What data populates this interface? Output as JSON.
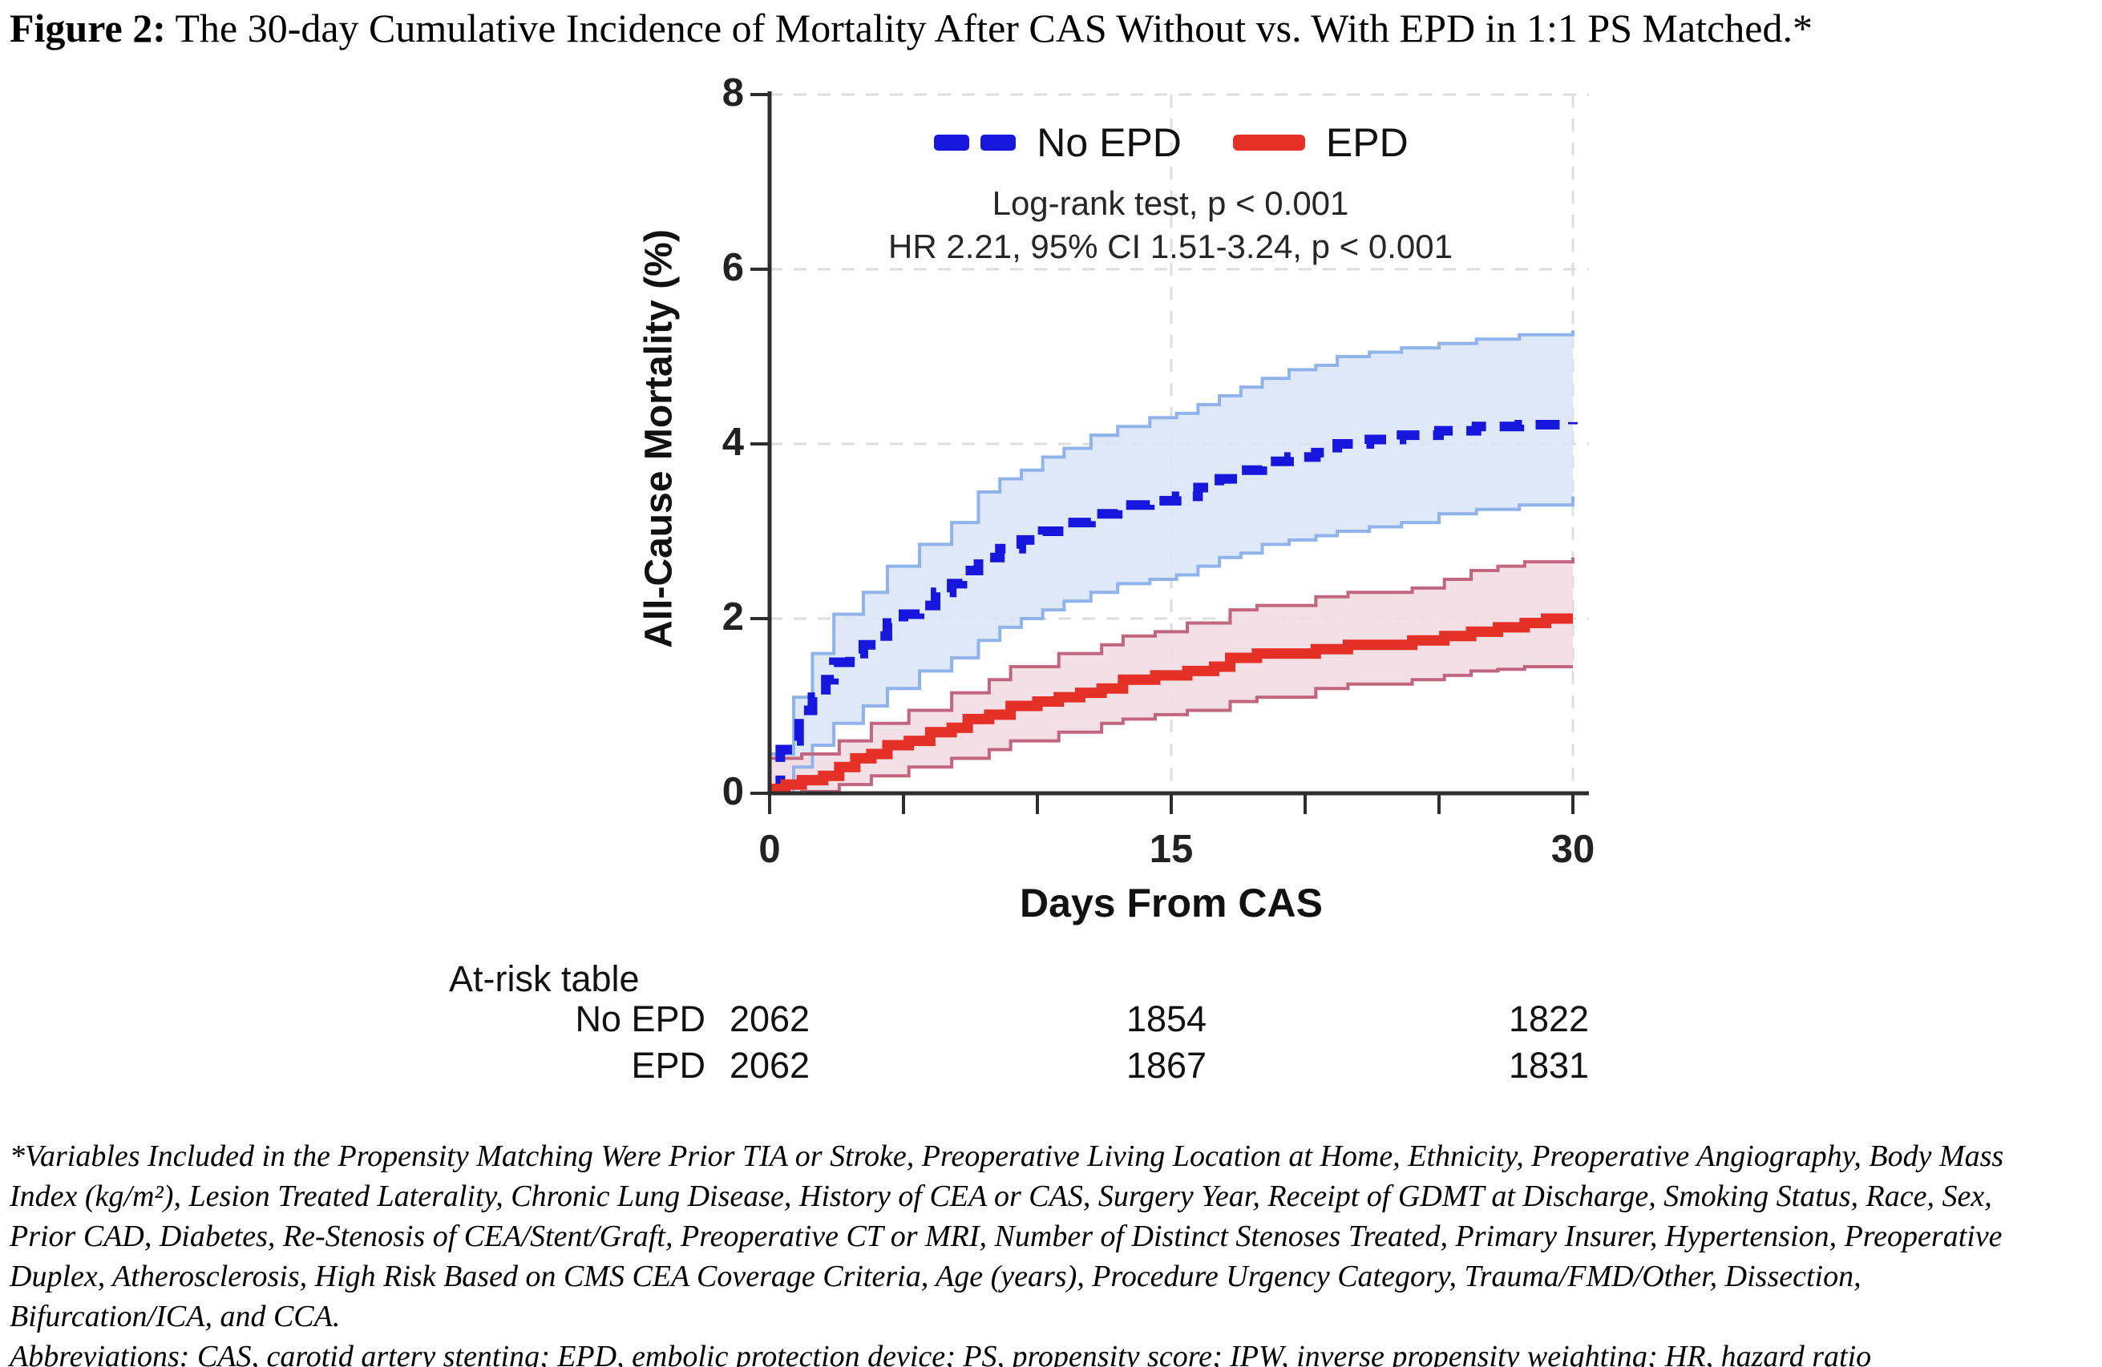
{
  "figure": {
    "title_prefix": "Figure 2:",
    "title_text": " The 30-day Cumulative Incidence of Mortality After CAS Without vs. With EPD in 1:1 PS Matched.*"
  },
  "chart_data": {
    "type": "line",
    "subtype": "kaplan-meier-step-with-confidence-bands",
    "title": "",
    "xlabel": "Days From CAS",
    "ylabel": "All-Cause Mortality (%)",
    "xlim": [
      0,
      30
    ],
    "ylim": [
      0,
      8
    ],
    "xticks": {
      "major": [
        0,
        15,
        30
      ],
      "minor": [
        5,
        10,
        20,
        25
      ]
    },
    "yticks": [
      0,
      2,
      4,
      6,
      8
    ],
    "grid_x": [
      15,
      30
    ],
    "grid_y": [
      2,
      4,
      6,
      8
    ],
    "grid_style": "dashed-light-gray",
    "legend_position": "top-center-inside",
    "annotations": {
      "logrank": "Log-rank test, p < 0.001",
      "hazard_ratio": "HR 2.21, 95% CI 1.51-3.24, p < 0.001"
    },
    "colors": {
      "no_epd_line": "#1616dc",
      "no_epd_band_fill": "#dbe5f6",
      "no_epd_band_edge": "#8fb3ea",
      "epd_line": "#e43027",
      "epd_band_fill": "#f2dce3",
      "epd_band_edge": "#c26580",
      "axis": "#2d2d2d",
      "grid": "#dedede"
    },
    "series": [
      {
        "name": "No EPD",
        "style": "dashed",
        "color": "#1616dc",
        "band_fill": "#dbe5f6",
        "band_edge": "#8fb3ea",
        "points": [
          [
            0,
            0.05
          ],
          [
            0.4,
            0.5
          ],
          [
            0.9,
            0.6
          ],
          [
            1.1,
            0.95
          ],
          [
            1.6,
            1.1
          ],
          [
            2.1,
            1.3
          ],
          [
            2.4,
            1.5
          ],
          [
            3.0,
            1.6
          ],
          [
            3.5,
            1.7
          ],
          [
            4.0,
            1.8
          ],
          [
            4.4,
            1.95
          ],
          [
            5.0,
            2.05
          ],
          [
            5.6,
            2.15
          ],
          [
            6.2,
            2.3
          ],
          [
            6.8,
            2.4
          ],
          [
            7.2,
            2.55
          ],
          [
            7.8,
            2.7
          ],
          [
            8.6,
            2.8
          ],
          [
            9.4,
            2.9
          ],
          [
            10.2,
            3.0
          ],
          [
            11.0,
            3.1
          ],
          [
            12.0,
            3.2
          ],
          [
            13.0,
            3.3
          ],
          [
            14.2,
            3.35
          ],
          [
            15.2,
            3.4
          ],
          [
            16.0,
            3.5
          ],
          [
            16.8,
            3.6
          ],
          [
            17.6,
            3.7
          ],
          [
            18.4,
            3.8
          ],
          [
            19.4,
            3.85
          ],
          [
            20.4,
            3.9
          ],
          [
            21.2,
            4.0
          ],
          [
            22.4,
            4.05
          ],
          [
            23.6,
            4.1
          ],
          [
            25.0,
            4.15
          ],
          [
            26.4,
            4.2
          ],
          [
            28.0,
            4.22
          ],
          [
            30,
            4.25
          ]
        ],
        "band": [
          [
            0,
            0.0,
            0.45
          ],
          [
            0.9,
            0.3,
            1.1
          ],
          [
            1.6,
            0.55,
            1.6
          ],
          [
            2.4,
            0.8,
            2.05
          ],
          [
            3.5,
            1.0,
            2.3
          ],
          [
            4.4,
            1.2,
            2.6
          ],
          [
            5.6,
            1.4,
            2.85
          ],
          [
            6.8,
            1.55,
            3.1
          ],
          [
            7.8,
            1.75,
            3.45
          ],
          [
            8.6,
            1.9,
            3.6
          ],
          [
            9.4,
            2.0,
            3.7
          ],
          [
            10.2,
            2.1,
            3.85
          ],
          [
            11.0,
            2.2,
            3.95
          ],
          [
            12.0,
            2.3,
            4.1
          ],
          [
            13.0,
            2.4,
            4.2
          ],
          [
            14.2,
            2.45,
            4.3
          ],
          [
            15.2,
            2.5,
            4.35
          ],
          [
            16.0,
            2.6,
            4.45
          ],
          [
            16.8,
            2.7,
            4.55
          ],
          [
            17.6,
            2.75,
            4.65
          ],
          [
            18.4,
            2.85,
            4.75
          ],
          [
            19.4,
            2.9,
            4.85
          ],
          [
            20.4,
            2.95,
            4.9
          ],
          [
            21.2,
            3.0,
            5.0
          ],
          [
            22.4,
            3.05,
            5.05
          ],
          [
            23.6,
            3.1,
            5.1
          ],
          [
            25.0,
            3.2,
            5.15
          ],
          [
            26.4,
            3.25,
            5.2
          ],
          [
            28.0,
            3.3,
            5.25
          ],
          [
            30,
            3.4,
            5.3
          ]
        ]
      },
      {
        "name": "EPD",
        "style": "solid",
        "color": "#e43027",
        "band_fill": "#f2dce3",
        "band_edge": "#c26580",
        "points": [
          [
            0,
            0.05
          ],
          [
            0.6,
            0.1
          ],
          [
            1.2,
            0.15
          ],
          [
            2.0,
            0.2
          ],
          [
            2.6,
            0.3
          ],
          [
            3.2,
            0.4
          ],
          [
            3.8,
            0.45
          ],
          [
            4.4,
            0.55
          ],
          [
            5.2,
            0.6
          ],
          [
            6.0,
            0.7
          ],
          [
            6.8,
            0.75
          ],
          [
            7.4,
            0.85
          ],
          [
            8.2,
            0.9
          ],
          [
            9.0,
            1.0
          ],
          [
            10.0,
            1.05
          ],
          [
            10.8,
            1.1
          ],
          [
            11.6,
            1.15
          ],
          [
            12.4,
            1.2
          ],
          [
            13.2,
            1.3
          ],
          [
            14.4,
            1.35
          ],
          [
            15.6,
            1.4
          ],
          [
            16.6,
            1.45
          ],
          [
            17.2,
            1.55
          ],
          [
            18.2,
            1.6
          ],
          [
            20.4,
            1.65
          ],
          [
            21.6,
            1.7
          ],
          [
            24.0,
            1.75
          ],
          [
            25.2,
            1.8
          ],
          [
            26.2,
            1.85
          ],
          [
            27.2,
            1.9
          ],
          [
            28.2,
            1.95
          ],
          [
            29.0,
            2.0
          ],
          [
            30,
            2.0
          ]
        ],
        "band": [
          [
            0,
            0.0,
            0.4
          ],
          [
            1.2,
            0.02,
            0.45
          ],
          [
            2.6,
            0.1,
            0.6
          ],
          [
            3.8,
            0.2,
            0.8
          ],
          [
            5.2,
            0.3,
            0.95
          ],
          [
            6.8,
            0.4,
            1.15
          ],
          [
            8.2,
            0.5,
            1.3
          ],
          [
            9.0,
            0.6,
            1.45
          ],
          [
            10.8,
            0.7,
            1.6
          ],
          [
            12.4,
            0.8,
            1.7
          ],
          [
            13.2,
            0.85,
            1.8
          ],
          [
            14.4,
            0.9,
            1.85
          ],
          [
            15.6,
            0.95,
            1.95
          ],
          [
            17.2,
            1.05,
            2.1
          ],
          [
            18.2,
            1.1,
            2.15
          ],
          [
            20.4,
            1.2,
            2.25
          ],
          [
            21.6,
            1.25,
            2.3
          ],
          [
            24.0,
            1.3,
            2.35
          ],
          [
            25.2,
            1.35,
            2.45
          ],
          [
            26.2,
            1.4,
            2.55
          ],
          [
            27.2,
            1.42,
            2.6
          ],
          [
            28.2,
            1.45,
            2.65
          ],
          [
            30,
            1.45,
            2.7
          ]
        ]
      }
    ],
    "legend": [
      {
        "label": "No EPD",
        "color": "#1616dc",
        "style": "dashed"
      },
      {
        "label": "EPD",
        "color": "#e43027",
        "style": "solid"
      }
    ],
    "at_risk": {
      "label": "At-risk table",
      "days": [
        0,
        15,
        30
      ],
      "rows": [
        {
          "label": "No EPD",
          "values": [
            2062,
            1854,
            1822
          ]
        },
        {
          "label": "EPD",
          "values": [
            2062,
            1867,
            1831
          ]
        }
      ]
    }
  },
  "footnote": {
    "lines": [
      "*Variables Included in the Propensity Matching Were Prior TIA or Stroke, Preoperative Living Location at Home, Ethnicity, Preoperative Angiography, Body Mass",
      "Index (kg/m²), Lesion Treated Laterality, Chronic Lung Disease, History of CEA or CAS, Surgery Year, Receipt of GDMT at Discharge, Smoking Status, Race, Sex,",
      "Prior CAD, Diabetes, Re-Stenosis of CEA/Stent/Graft, Preoperative CT or MRI, Number of Distinct Stenoses Treated, Primary Insurer, Hypertension, Preoperative",
      "Duplex, Atherosclerosis, High Risk Based on CMS CEA Coverage Criteria, Age (years), Procedure Urgency Category, Trauma/FMD/Other, Dissection,",
      "Bifurcation/ICA, and CCA."
    ],
    "abbreviations": "Abbreviations: CAS, carotid artery stenting; EPD, embolic protection device; PS, propensity score; IPW, inverse propensity weighting; HR, hazard ratio"
  }
}
